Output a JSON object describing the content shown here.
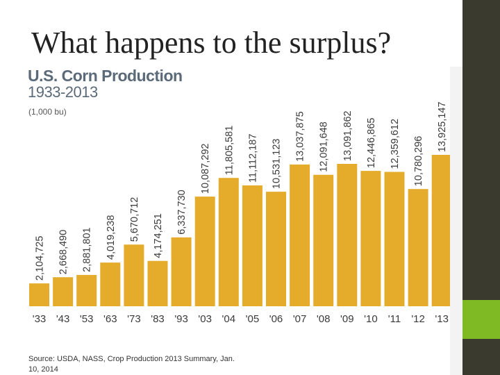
{
  "slide": {
    "title": "What happens to the surplus?"
  },
  "colors": {
    "bar": "#e5ac2c",
    "side_dark": "#3b3a2e",
    "side_accent": "#7fba24",
    "title_blue_gray": "#5a6a78"
  },
  "chart_data": {
    "type": "bar",
    "title": "U.S. Corn Production",
    "subtitle": "1933-2013",
    "units": "(1,000 bu)",
    "categories": [
      "'33",
      "'43",
      "'53",
      "'63",
      "'73",
      "'83",
      "'93",
      "'03",
      "'04",
      "'05",
      "'06",
      "'07",
      "'08",
      "'09",
      "'10",
      "'11",
      "'12",
      "'13"
    ],
    "values": [
      2104725,
      2668490,
      2881801,
      4019238,
      5670712,
      4174251,
      6337730,
      10087292,
      11805581,
      11112187,
      10531123,
      13037875,
      12091648,
      13091862,
      12446865,
      12359612,
      10780296,
      13925147
    ],
    "value_labels": [
      "2,104,725",
      "2,668,490",
      "2,881,801",
      "4,019,238",
      "5,670,712",
      "4,174,251",
      "6,337,730",
      "10,087,292",
      "11,805,581",
      "11,112,187",
      "10,531,123",
      "13,037,875",
      "12,091,648",
      "13,091,862",
      "12,446,865",
      "12,359,612",
      "10,780,296",
      "13,925,147"
    ],
    "xlabel": "",
    "ylabel": "",
    "ylim": [
      0,
      13925147
    ],
    "grid": false,
    "source": "Source: USDA, NASS, Crop Production 2013 Summary, Jan. 10, 2014"
  }
}
